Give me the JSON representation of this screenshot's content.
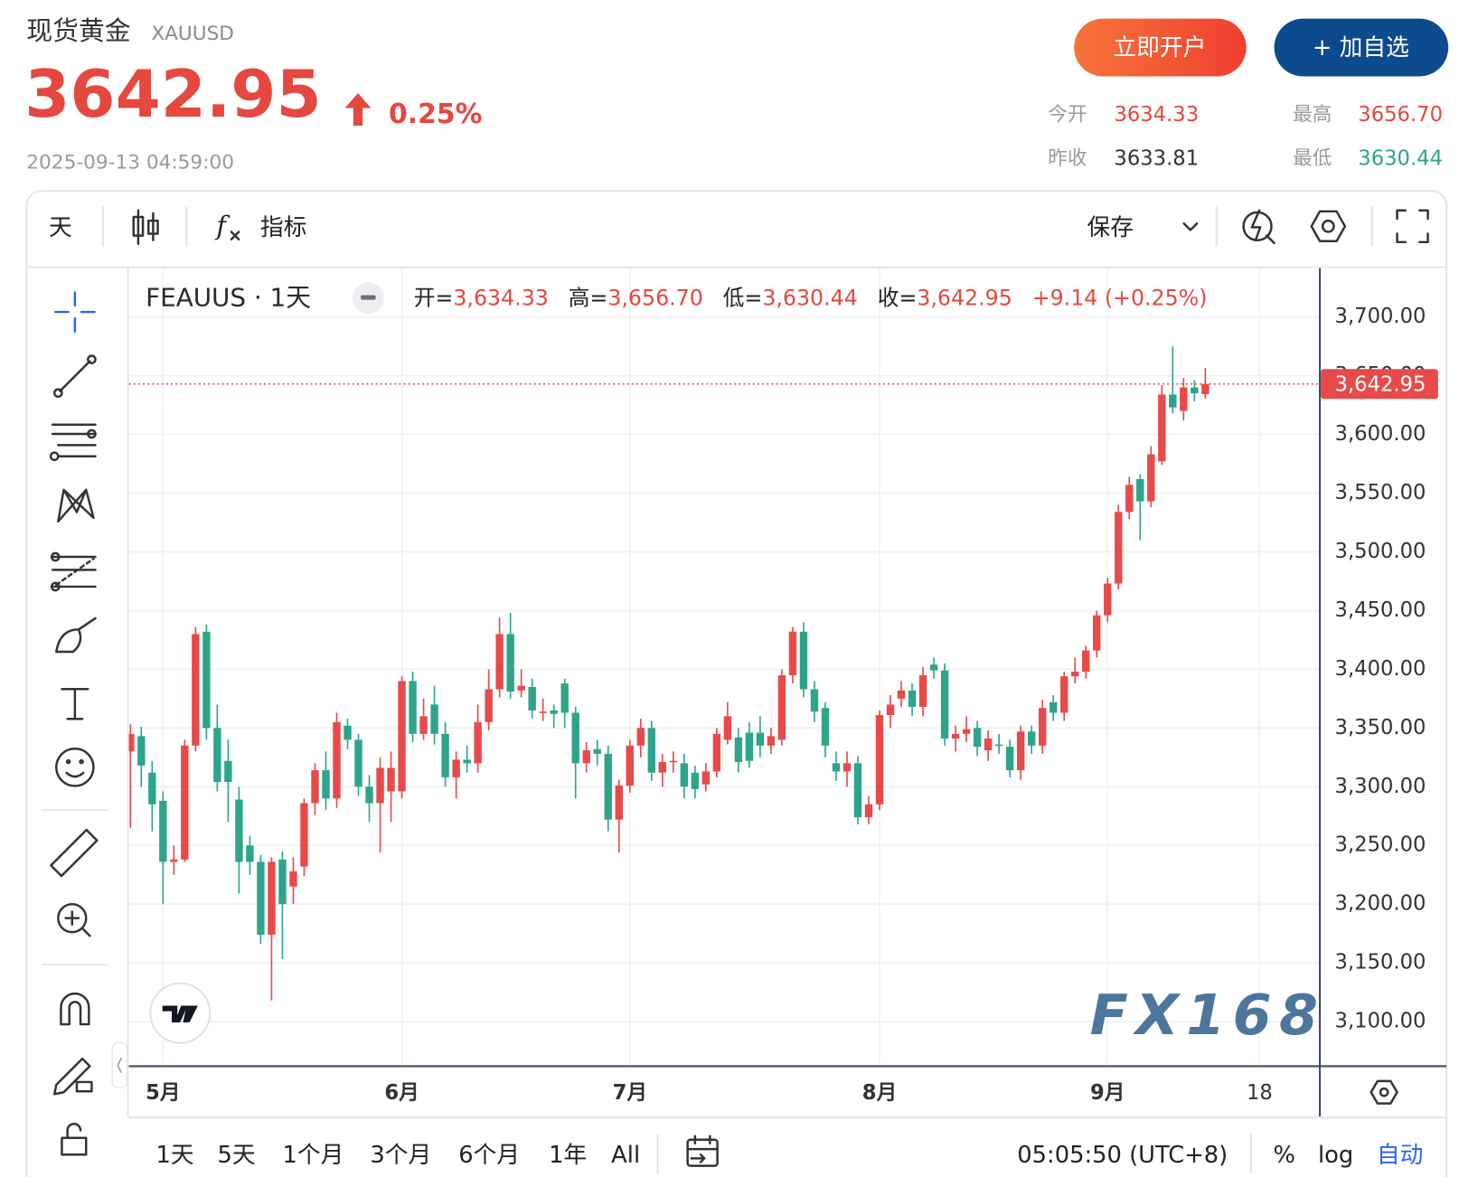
{
  "header": {
    "title": "现货黄金",
    "symbol": "XAUUSD",
    "price": "3642.95",
    "change": "0.25%",
    "timestamp": "2025-09-13 04:59:00",
    "buttons": [
      "立即开户",
      "+ 加自选"
    ],
    "stats": [
      {
        "label": "今开",
        "value": "3634.33"
      },
      {
        "label": "最高",
        "value": "3656.70"
      },
      {
        "label": "昨收",
        "value": "3633.81"
      },
      {
        "label": "最低",
        "value": "3630.44"
      }
    ]
  },
  "toolbar": {
    "interval": "天",
    "indicators": "指标",
    "save": "保存"
  },
  "chart_data": {
    "type": "candlestick",
    "legend": {
      "symbol": "FEAUUS · 1天",
      "items": [
        {
          "label": "开=",
          "value": "3,634.33"
        },
        {
          "label": "高=",
          "value": "3,656.70"
        },
        {
          "label": "低=",
          "value": "3,630.44"
        },
        {
          "label": "收=",
          "value": "3,642.95"
        }
      ],
      "change": "+9.14 (+0.25%)"
    },
    "up_color": "#e84a4a",
    "down_color": "#2ea58a",
    "grid": true,
    "open": [
      3330,
      3343,
      3312,
      3288,
      3236,
      3238,
      3335,
      3432,
      3350,
      3322,
      3289,
      3250,
      3236,
      3174,
      3238,
      3215,
      3232,
      3286,
      3314,
      3290,
      3352,
      3340,
      3300,
      3286,
      3296,
      3296,
      3390,
      3345,
      3370,
      3345,
      3308,
      3323,
      3320,
      3355,
      3383,
      3430,
      3382,
      3385,
      3363,
      3365,
      3388,
      3363,
      3320,
      3332,
      3328,
      3272,
      3301,
      3335,
      3350,
      3312,
      3321,
      3320,
      3312,
      3302,
      3313,
      3340,
      3342,
      3346,
      3346,
      3335,
      3340,
      3395,
      3432,
      3383,
      3367,
      3320,
      3313,
      3320,
      3274,
      3285,
      3361,
      3375,
      3382,
      3368,
      3404,
      3399,
      3341,
      3345,
      3350,
      3331,
      3336,
      3334,
      3314,
      3347,
      3335,
      3372,
      3363,
      3394,
      3398,
      3416,
      3446,
      3473,
      3534,
      3562,
      3543,
      3577,
      3634,
      3620,
      3640,
      3634.33
    ],
    "high": [
      3353,
      3351,
      3322,
      3296,
      3250,
      3340,
      3436,
      3438,
      3370,
      3340,
      3300,
      3258,
      3242,
      3240,
      3245,
      3240,
      3290,
      3320,
      3330,
      3363,
      3358,
      3345,
      3310,
      3325,
      3330,
      3394,
      3398,
      3375,
      3386,
      3355,
      3330,
      3335,
      3370,
      3400,
      3444,
      3448,
      3400,
      3392,
      3375,
      3370,
      3392,
      3368,
      3338,
      3340,
      3335,
      3306,
      3340,
      3358,
      3356,
      3328,
      3330,
      3328,
      3318,
      3320,
      3350,
      3372,
      3350,
      3355,
      3360,
      3350,
      3400,
      3436,
      3440,
      3390,
      3372,
      3330,
      3330,
      3326,
      3292,
      3365,
      3378,
      3390,
      3388,
      3402,
      3410,
      3405,
      3352,
      3360,
      3356,
      3348,
      3345,
      3340,
      3352,
      3352,
      3374,
      3378,
      3398,
      3410,
      3420,
      3450,
      3478,
      3540,
      3564,
      3566,
      3590,
      3642,
      3675,
      3648,
      3646,
      3656.7
    ],
    "low": [
      3265,
      3300,
      3262,
      3200,
      3225,
      3236,
      3330,
      3340,
      3296,
      3270,
      3209,
      3225,
      3166,
      3118,
      3153,
      3200,
      3224,
      3276,
      3280,
      3282,
      3332,
      3292,
      3270,
      3244,
      3270,
      3290,
      3338,
      3340,
      3336,
      3300,
      3290,
      3312,
      3312,
      3348,
      3376,
      3375,
      3376,
      3358,
      3356,
      3350,
      3350,
      3290,
      3312,
      3318,
      3262,
      3244,
      3295,
      3325,
      3305,
      3300,
      3312,
      3290,
      3290,
      3296,
      3308,
      3336,
      3312,
      3316,
      3325,
      3328,
      3335,
      3388,
      3376,
      3355,
      3325,
      3305,
      3300,
      3268,
      3268,
      3280,
      3350,
      3368,
      3360,
      3360,
      3392,
      3335,
      3330,
      3338,
      3326,
      3322,
      3328,
      3308,
      3306,
      3328,
      3328,
      3356,
      3356,
      3388,
      3392,
      3410,
      3440,
      3468,
      3528,
      3510,
      3538,
      3574,
      3618,
      3612,
      3628,
      3630.44
    ],
    "close": [
      3345,
      3318,
      3285,
      3236,
      3238,
      3335,
      3430,
      3350,
      3304,
      3304,
      3236,
      3236,
      3174,
      3236,
      3200,
      3228,
      3286,
      3314,
      3290,
      3355,
      3340,
      3300,
      3286,
      3316,
      3316,
      3390,
      3345,
      3360,
      3345,
      3308,
      3323,
      3320,
      3355,
      3383,
      3430,
      3381,
      3386,
      3365,
      3364,
      3362,
      3363,
      3320,
      3331,
      3328,
      3272,
      3301,
      3335,
      3350,
      3312,
      3321,
      3322,
      3300,
      3298,
      3313,
      3345,
      3360,
      3321,
      3322,
      3335,
      3343,
      3395,
      3432,
      3383,
      3364,
      3335,
      3313,
      3320,
      3274,
      3285,
      3361,
      3370,
      3382,
      3368,
      3395,
      3399,
      3341,
      3345,
      3349,
      3334,
      3341,
      3335,
      3314,
      3347,
      3335,
      3367,
      3363,
      3394,
      3398,
      3416,
      3446,
      3473,
      3534,
      3557,
      3543,
      3583,
      3634,
      3623,
      3640,
      3635,
      3642.95
    ],
    "price_line": {
      "value": 3642.95,
      "label": "3,642.95"
    },
    "xlim": [
      -0.14,
      109.55
    ],
    "xticks": [
      {
        "value": 3,
        "label": "5月"
      },
      {
        "value": 25,
        "label": "6月"
      },
      {
        "value": 46,
        "label": "7月"
      },
      {
        "value": 69,
        "label": "8月"
      },
      {
        "value": 90,
        "label": "9月"
      },
      {
        "value": 104,
        "label": "18"
      }
    ],
    "ylim": [
      3062,
      3740
    ],
    "yticks": [
      {
        "value": 3100,
        "label": "3,100.00"
      },
      {
        "value": 3150,
        "label": "3,150.00"
      },
      {
        "value": 3200,
        "label": "3,200.00"
      },
      {
        "value": 3250,
        "label": "3,250.00"
      },
      {
        "value": 3300,
        "label": "3,300.00"
      },
      {
        "value": 3350,
        "label": "3,350.00"
      },
      {
        "value": 3400,
        "label": "3,400.00"
      },
      {
        "value": 3450,
        "label": "3,450.00"
      },
      {
        "value": 3500,
        "label": "3,500.00"
      },
      {
        "value": 3550,
        "label": "3,550.00"
      },
      {
        "value": 3600,
        "label": "3,600.00"
      },
      {
        "value": 3650,
        "label": "3,650.00"
      },
      {
        "value": 3700,
        "label": "3,700.00"
      }
    ],
    "watermark": "FX168"
  },
  "bottom_bar": {
    "ranges": [
      "1天",
      "5天",
      "1个月",
      "3个月",
      "6个月",
      "1年",
      "All"
    ],
    "time": "05:05:50 (UTC+8)",
    "percent": "%",
    "log": "log",
    "auto": "自动"
  }
}
